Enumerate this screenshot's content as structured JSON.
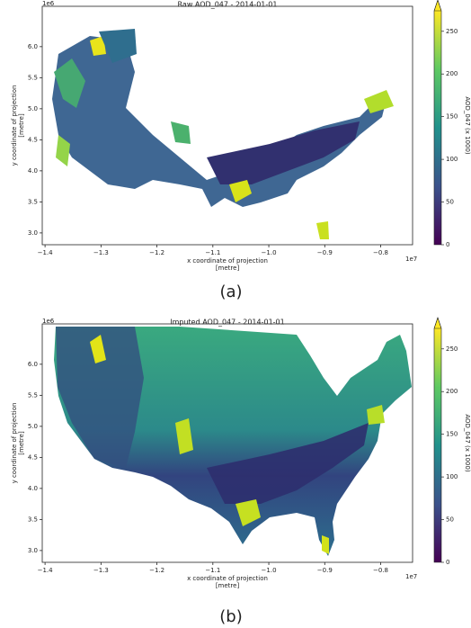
{
  "chart_data": [
    {
      "type": "heatmap",
      "title": "Raw AOD_047 - 2014-01-01",
      "caption": "(a)",
      "xlabel": [
        "x coordinate of projection",
        "[metre]"
      ],
      "ylabel": [
        "y coordinate of projection",
        "[metre]"
      ],
      "x_offset": "1e7",
      "y_offset": "1e6",
      "xlim": [
        -1.405,
        -0.743
      ],
      "ylim": [
        2.81,
        6.65
      ],
      "xticks": [
        {
          "value": -1.4,
          "label": "−1.4"
        },
        {
          "value": -1.3,
          "label": "−1.3"
        },
        {
          "value": -1.2,
          "label": "−1.2"
        },
        {
          "value": -1.1,
          "label": "−1.1"
        },
        {
          "value": -1.0,
          "label": "−1.0"
        },
        {
          "value": -0.9,
          "label": "−0.9"
        },
        {
          "value": -0.8,
          "label": "−0.8"
        }
      ],
      "yticks": [
        {
          "value": 3,
          "label": "3.0"
        },
        {
          "value": 3.5,
          "label": "3.5"
        },
        {
          "value": 4,
          "label": "4.0"
        },
        {
          "value": 4.5,
          "label": "4.5"
        },
        {
          "value": 5,
          "label": "5.0"
        },
        {
          "value": 5.5,
          "label": "5.5"
        },
        {
          "value": 6,
          "label": "6.0"
        }
      ],
      "colormap": "viridis",
      "colorbar_label": "AOD_047 (x 1000)",
      "clim": [
        0,
        274
      ],
      "cticks": [
        0,
        50,
        100,
        150,
        200,
        250
      ]
    },
    {
      "type": "heatmap",
      "title": "Imputed AOD_047 - 2014-01-01",
      "caption": "(b)",
      "xlabel": [
        "x coordinate of projection",
        "[metre]"
      ],
      "ylabel": [
        "y coordinate of projection",
        "[metre]"
      ],
      "x_offset": "1e7",
      "y_offset": "1e6",
      "xlim": [
        -1.405,
        -0.743
      ],
      "ylim": [
        2.81,
        6.65
      ],
      "xticks": [
        {
          "value": -1.4,
          "label": "−1.4"
        },
        {
          "value": -1.3,
          "label": "−1.3"
        },
        {
          "value": -1.2,
          "label": "−1.2"
        },
        {
          "value": -1.1,
          "label": "−1.1"
        },
        {
          "value": -1.0,
          "label": "−1.0"
        },
        {
          "value": -0.9,
          "label": "−0.9"
        },
        {
          "value": -0.8,
          "label": "−0.8"
        }
      ],
      "yticks": [
        {
          "value": 3,
          "label": "3.0"
        },
        {
          "value": 3.5,
          "label": "3.5"
        },
        {
          "value": 4,
          "label": "4.0"
        },
        {
          "value": 4.5,
          "label": "4.5"
        },
        {
          "value": 5,
          "label": "5.0"
        },
        {
          "value": 5.5,
          "label": "5.5"
        },
        {
          "value": 6,
          "label": "6.0"
        }
      ],
      "colormap": "viridis",
      "colorbar_label": "AOD_047 (x 1000)",
      "clim": [
        0,
        274
      ],
      "cticks": [
        0,
        50,
        100,
        150,
        200,
        250
      ]
    }
  ]
}
